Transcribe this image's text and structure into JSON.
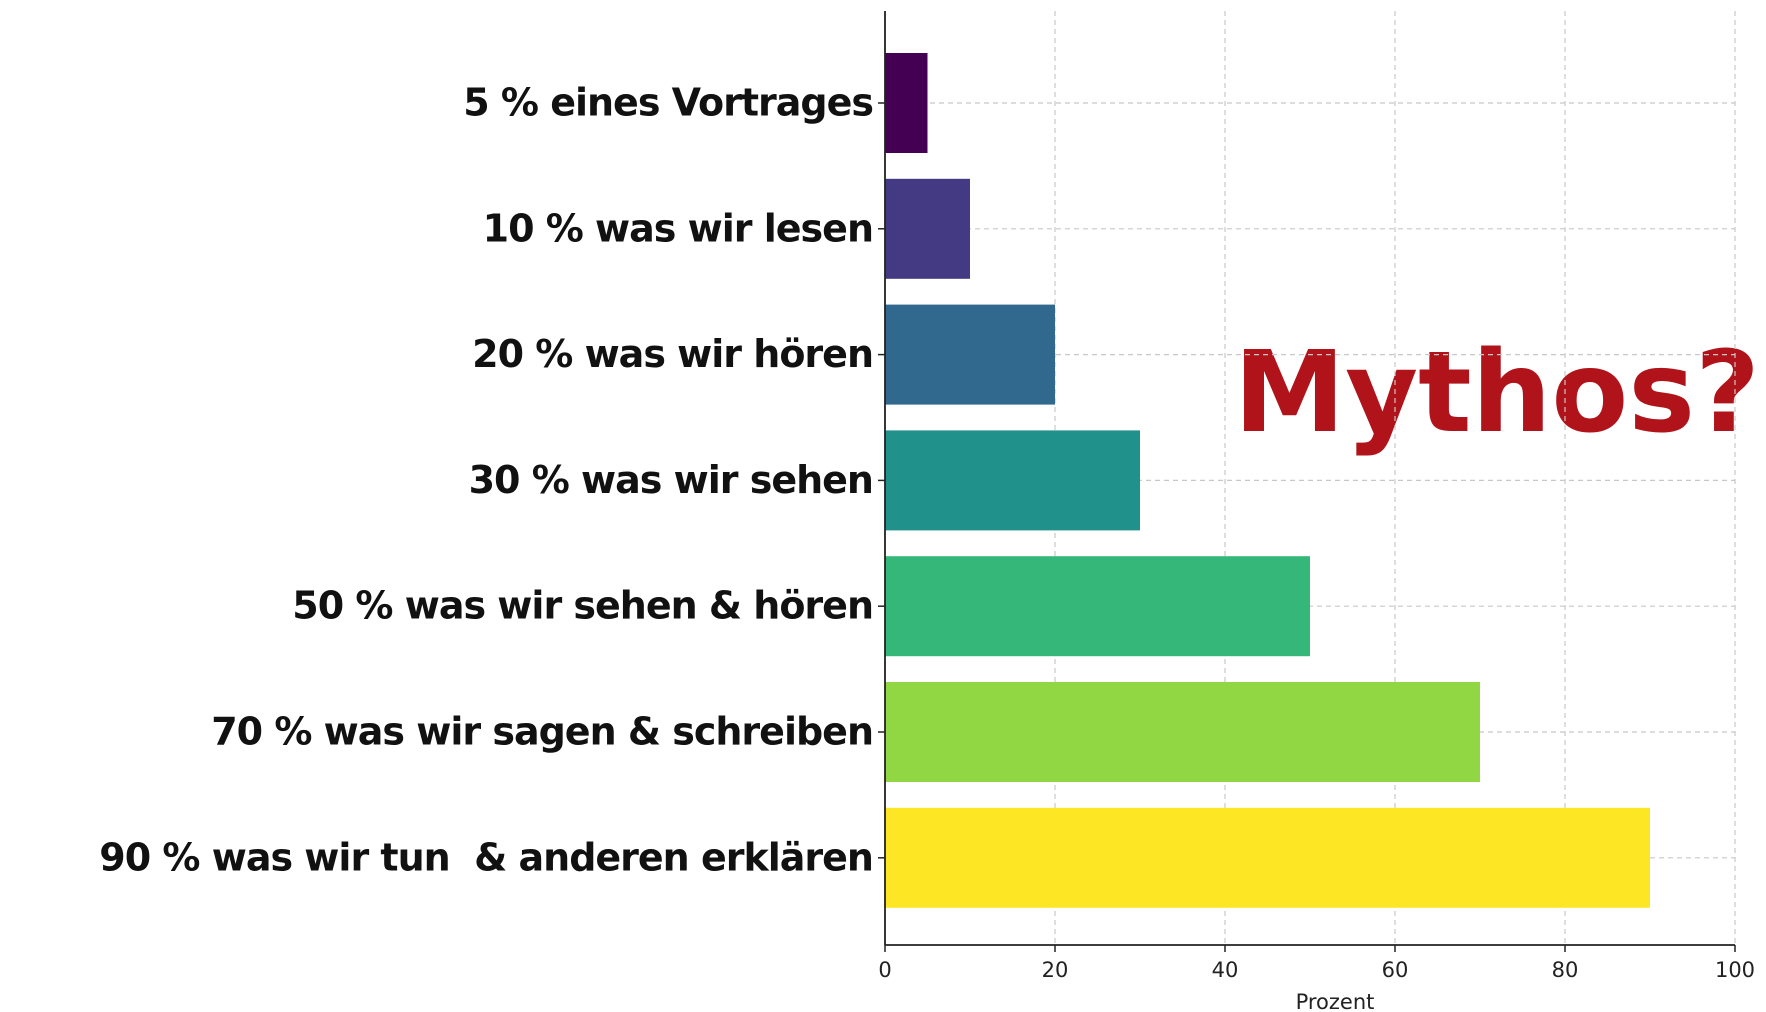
{
  "chart_data": {
    "type": "bar",
    "orientation": "horizontal",
    "categories": [
      "5 % eines Vortrages",
      "10 % was wir lesen",
      "20 % was wir hören",
      "30 % was wir sehen",
      "50 % was wir sehen & hören",
      "70 % was wir sagen & schreiben",
      "90 % was wir tun  & anderen erklären"
    ],
    "values": [
      5,
      10,
      20,
      30,
      50,
      70,
      90
    ],
    "colors": [
      "#440154",
      "#443983",
      "#31688e",
      "#21918c",
      "#35b779",
      "#90d743",
      "#fde725"
    ],
    "xlim": [
      0,
      100
    ],
    "xticks": [
      0,
      20,
      40,
      60,
      80,
      100
    ],
    "xlabel": "Prozent",
    "annotation": "Mythos?",
    "grid": true
  }
}
